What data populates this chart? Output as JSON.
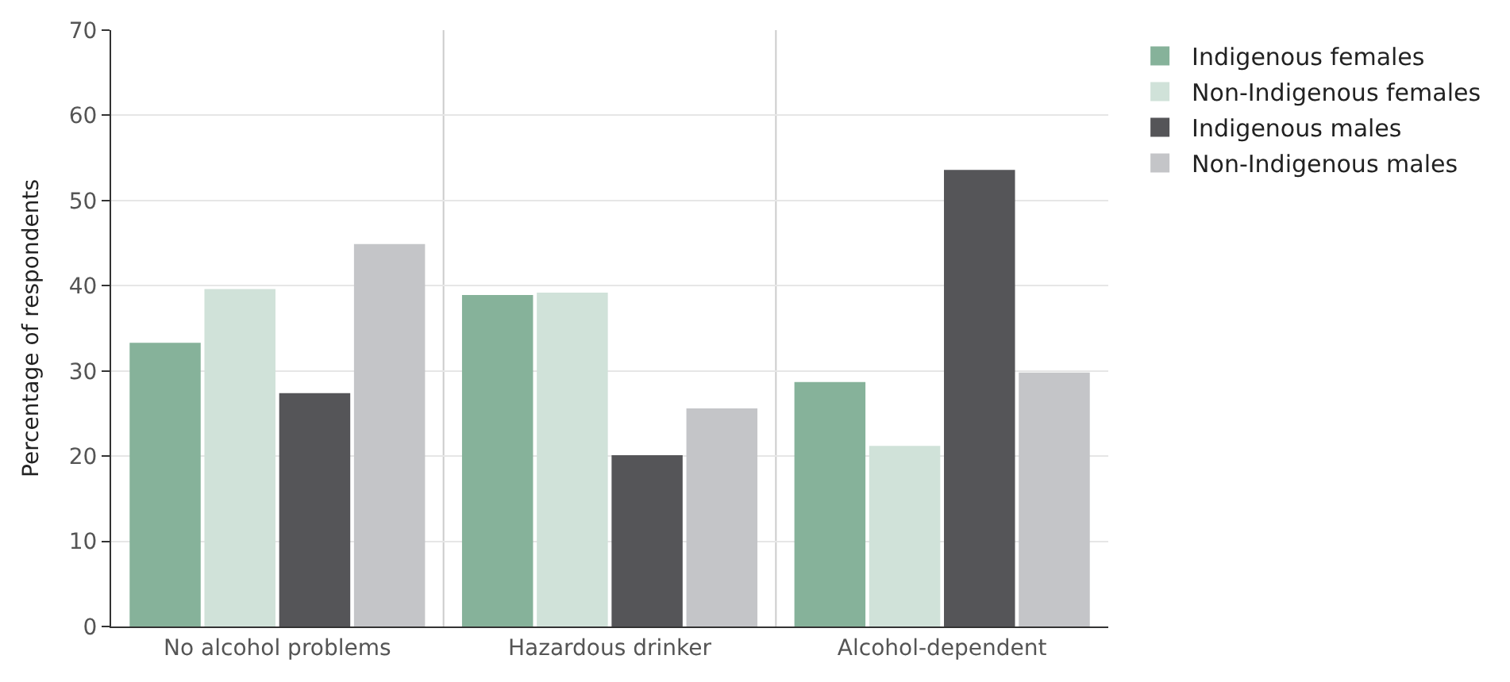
{
  "chart_data": {
    "type": "bar",
    "ylabel": "Percentage of respondents",
    "categories": [
      "No alcohol problems",
      "Hazardous drinker",
      "Alcohol-dependent"
    ],
    "series": [
      {
        "name": "Indigenous females",
        "color": "#86b29a",
        "values": [
          33.3,
          38.9,
          28.7
        ]
      },
      {
        "name": "Non-Indigenous females",
        "color": "#d0e2d9",
        "values": [
          39.6,
          39.2,
          21.2
        ]
      },
      {
        "name": "Indigenous males",
        "color": "#555558",
        "values": [
          27.4,
          20.1,
          53.6
        ]
      },
      {
        "name": "Non-Indigenous males",
        "color": "#c4c5c8",
        "values": [
          44.9,
          25.6,
          29.8
        ]
      }
    ],
    "ylim": [
      0,
      70
    ],
    "yticks": [
      0,
      10,
      20,
      30,
      40,
      50,
      60,
      70
    ],
    "grid": true,
    "legend": "top right"
  }
}
